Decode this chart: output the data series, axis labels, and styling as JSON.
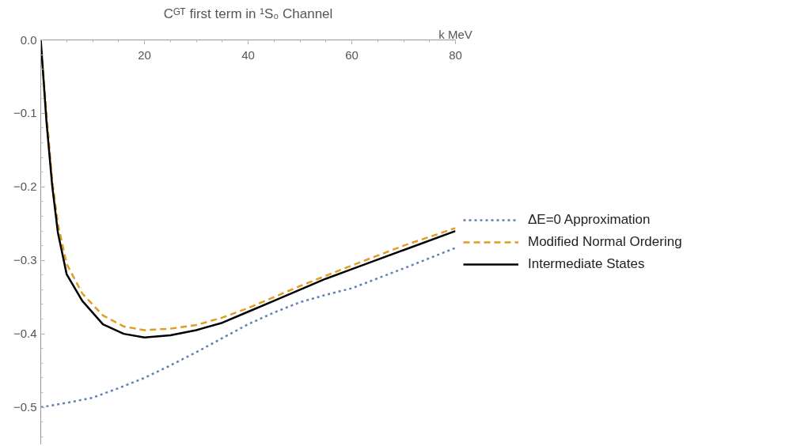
{
  "chart_data": {
    "type": "line",
    "title": "Cᴳᵀ first term in ¹S₀ Channel",
    "xlabel": "k MeV",
    "xlim": [
      0,
      80
    ],
    "ylim": [
      -0.55,
      0
    ],
    "xticks": [
      20,
      40,
      60,
      80
    ],
    "yticks": [
      {
        "value": 0,
        "label": "0.0"
      },
      {
        "value": -0.1,
        "label": "−0.1"
      },
      {
        "value": -0.2,
        "label": "−0.2"
      },
      {
        "value": -0.3,
        "label": "−0.3"
      },
      {
        "value": -0.4,
        "label": "−0.4"
      },
      {
        "value": -0.5,
        "label": "−0.5"
      }
    ],
    "grid": false,
    "legend": "right",
    "marker": "none",
    "series": [
      {
        "name": "ΔE=0 Approximation",
        "color": "#5e81b5",
        "line_style": "dotted",
        "x": [
          0,
          5,
          10,
          15,
          20,
          25,
          30,
          35,
          40,
          45,
          50,
          55,
          60,
          70,
          80
        ],
        "values": [
          -0.5,
          -0.494,
          -0.487,
          -0.474,
          -0.46,
          -0.443,
          -0.425,
          -0.406,
          -0.387,
          -0.371,
          -0.357,
          -0.347,
          -0.338,
          -0.311,
          -0.283
        ]
      },
      {
        "name": "Modified Normal Ordering",
        "color": "#e19c24",
        "line_style": "dashed",
        "x": [
          0,
          1.1,
          2.2,
          3.3,
          5,
          8,
          12,
          16,
          20,
          25,
          30,
          35,
          40,
          50,
          60,
          70,
          80
        ],
        "values": [
          0,
          -0.1,
          -0.19,
          -0.25,
          -0.305,
          -0.345,
          -0.375,
          -0.39,
          -0.395,
          -0.393,
          -0.388,
          -0.378,
          -0.365,
          -0.335,
          -0.307,
          -0.28,
          -0.256
        ]
      },
      {
        "name": "Intermediate States",
        "color": "#000000",
        "line_style": "solid",
        "x": [
          0,
          1.1,
          2.2,
          3.3,
          5,
          8,
          12,
          16,
          20,
          25,
          30,
          35,
          40,
          45,
          50,
          55,
          60,
          70,
          80
        ],
        "values": [
          0,
          -0.111,
          -0.198,
          -0.262,
          -0.319,
          -0.355,
          -0.387,
          -0.4,
          -0.405,
          -0.402,
          -0.395,
          -0.385,
          -0.37,
          -0.355,
          -0.34,
          -0.325,
          -0.312,
          -0.286,
          -0.26
        ]
      }
    ]
  }
}
